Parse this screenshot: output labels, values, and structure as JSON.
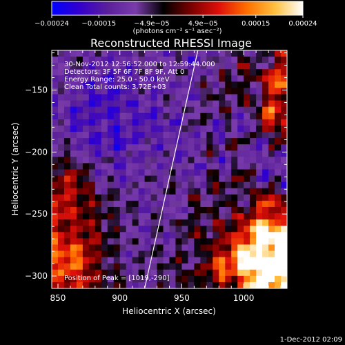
{
  "chart_data": {
    "type": "heatmap",
    "title": "Reconstructed RHESSI Image",
    "xlabel": "Heliocentric X (arcsec)",
    "ylabel": "Heliocentric Y (arcsec)",
    "x_ticks": [
      850,
      900,
      950,
      1000
    ],
    "x_tick_labels": [
      "850",
      "900",
      "950",
      "1000"
    ],
    "y_ticks": [
      -150,
      -200,
      -250,
      -300
    ],
    "y_tick_labels": [
      "−150",
      "−200",
      "−250",
      "−300"
    ],
    "xlim": [
      845,
      1035
    ],
    "ylim": [
      -310,
      -118
    ],
    "colorbar": {
      "range": [
        -0.00024,
        0.00024
      ],
      "ticks": [
        -0.00024,
        -0.00015,
        -4.9e-05,
        4.9e-05,
        0.00015,
        0.00024
      ],
      "tick_labels": [
        "−0.00024",
        "−0.00015",
        "−4.9e−05",
        "4.9e−05",
        "0.00015",
        "0.00024"
      ],
      "colors": [
        "#0000ff",
        "#3300cc",
        "#5a1f9a",
        "#7a3cab",
        "#000000",
        "#7a0000",
        "#e0100a",
        "#ff7000",
        "#ffc040",
        "#ffffff"
      ]
    },
    "annotations": [
      "30-Nov-2012 12:56:52.000 to 12:59:44.000",
      "Detectors: 3F 5F 6F 7F 8F 9F, Att 0",
      "Energy Range: 25.0 - 50.0 keV",
      "Clean     Total counts: 3.72E+03"
    ],
    "peak_label": "Position of Peak = [1019,-290]",
    "peak": [
      1019,
      -290
    ],
    "limb_line": [
      [
        920,
        -310
      ],
      [
        963,
        -118
      ]
    ],
    "limb_color": "#ffffff"
  },
  "colorbar_units": "(photons cm⁻² s⁻¹ asec⁻²)",
  "footer_date": "1-Dec-2012 02:09"
}
